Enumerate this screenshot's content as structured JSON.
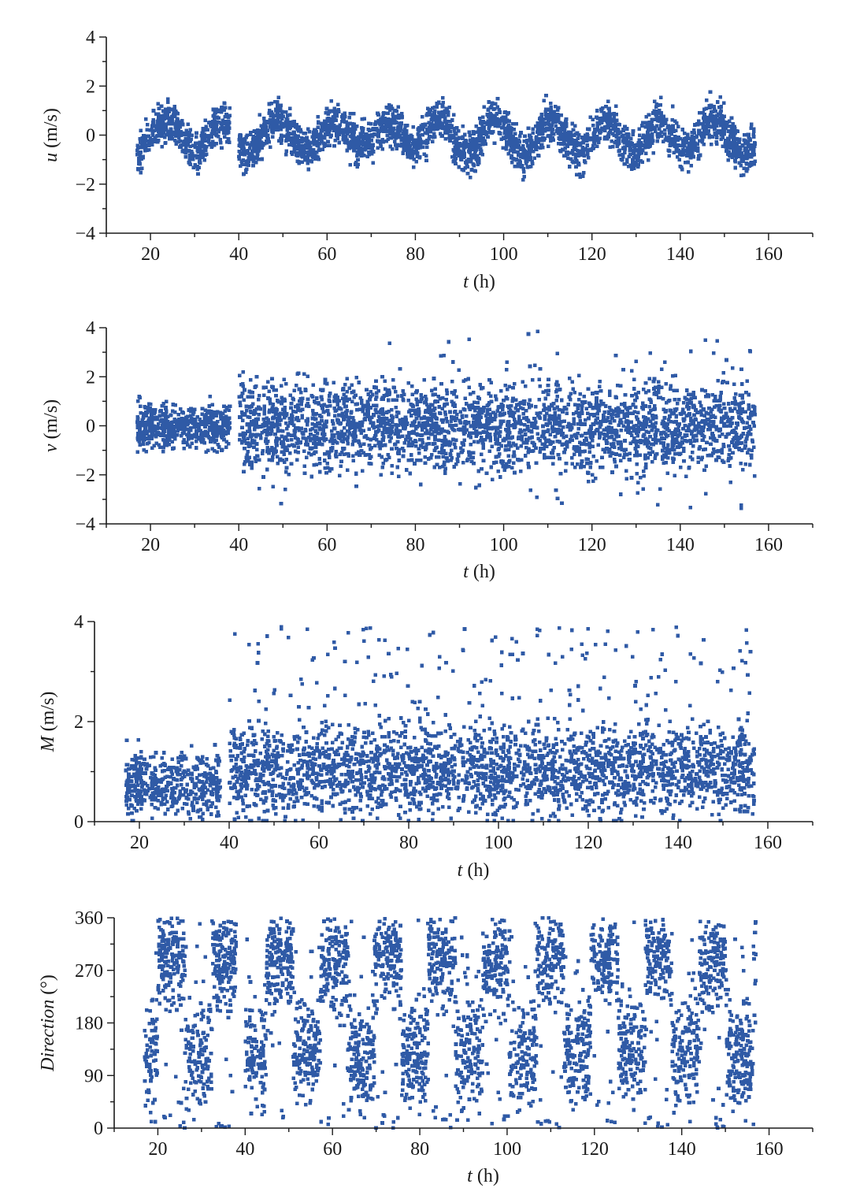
{
  "figure": {
    "point_color": "#2f5aa6"
  },
  "chart_data": [
    {
      "type": "scatter",
      "ylabel_var": "u",
      "ylabel_unit": " (m/s)",
      "xlabel_var": "t",
      "xlabel_unit": " (h)",
      "xlim": [
        10,
        170
      ],
      "ylim": [
        -4,
        4
      ],
      "xticks": [
        20,
        40,
        60,
        80,
        100,
        120,
        140,
        160
      ],
      "yticks": [
        -4,
        -2,
        0,
        2,
        4
      ],
      "ytick_labels": [
        "−4",
        "−2",
        "0",
        "2",
        "4"
      ],
      "x_range": [
        17,
        157
      ],
      "gap": [
        38,
        40
      ],
      "pattern": "semidiurnal oscillation, amplitude ~0.9 m/s, period ~12.4 h, scatter ±0.55",
      "series": [
        {
          "x": [
            17,
            19,
            21,
            23,
            25,
            27,
            29,
            31,
            33,
            35,
            37,
            41,
            44,
            47,
            50,
            53,
            56,
            59,
            62,
            65,
            68,
            71,
            74,
            77,
            80,
            83,
            86,
            89,
            92,
            95,
            98,
            101,
            104,
            107,
            110,
            113,
            116,
            119,
            122,
            125,
            128,
            131,
            134,
            137,
            140,
            143,
            146,
            149,
            152,
            155
          ],
          "y": [
            -0.6,
            -0.3,
            0.0,
            0.3,
            0.5,
            0.3,
            -0.2,
            -0.6,
            -0.5,
            0.0,
            0.5,
            -0.4,
            -0.6,
            0.1,
            0.6,
            0.2,
            -0.6,
            -0.7,
            0.4,
            0.6,
            -0.2,
            -0.6,
            0.4,
            0.5,
            -0.2,
            0.0,
            0.6,
            -0.1,
            -0.8,
            -0.3,
            0.6,
            0.4,
            -0.6,
            -0.8,
            0.2,
            0.5,
            -0.4,
            -0.9,
            0.2,
            0.6,
            -0.3,
            -0.9,
            0.1,
            0.5,
            -0.3,
            -0.7,
            0.3,
            0.6,
            -0.2,
            -0.8
          ]
        }
      ]
    },
    {
      "type": "scatter",
      "ylabel_var": "v",
      "ylabel_unit": " (m/s)",
      "xlabel_var": "t",
      "xlabel_unit": " (h)",
      "xlim": [
        10,
        170
      ],
      "ylim": [
        -4,
        4
      ],
      "xticks": [
        20,
        40,
        60,
        80,
        100,
        120,
        140,
        160
      ],
      "yticks": [
        -4,
        -2,
        0,
        2,
        4
      ],
      "ytick_labels": [
        "−4",
        "−2",
        "0",
        "2",
        "4"
      ],
      "x_range": [
        17,
        157
      ],
      "gap": [
        38,
        40
      ],
      "pattern": "dense band 17-38 h at 0±0.7 m/s, broader scatter 40-157 h at 0±1.2 m/s"
    },
    {
      "type": "scatter",
      "ylabel_var": "M",
      "ylabel_unit": " (m/s)",
      "xlabel_var": "t",
      "xlabel_unit": " (h)",
      "xlim": [
        10,
        170
      ],
      "ylim": [
        0,
        4
      ],
      "xticks": [
        20,
        40,
        60,
        80,
        100,
        120,
        140,
        160
      ],
      "yticks": [
        0,
        2,
        4
      ],
      "ytick_labels": [
        "0",
        "2",
        "4"
      ],
      "x_range": [
        17,
        157
      ],
      "gap": [
        38,
        40
      ],
      "pattern": "magnitude ~0.8 m/s for 17-38 h, ~1.0-1.2 m/s with spread to ~3.9 m/s for 40-157 h"
    },
    {
      "type": "scatter",
      "ylabel_var": "Direction",
      "ylabel_unit": " (°)",
      "xlabel_var": "t",
      "xlabel_unit": " (h)",
      "xlim": [
        10,
        170
      ],
      "ylim": [
        0,
        360
      ],
      "xticks": [
        20,
        40,
        60,
        80,
        100,
        120,
        140,
        160
      ],
      "yticks": [
        0,
        90,
        180,
        270,
        360
      ],
      "ytick_labels": [
        "0",
        "90",
        "180",
        "270",
        "360"
      ],
      "x_range": [
        17,
        157
      ],
      "gap": [
        38,
        40
      ],
      "pattern": "alternating clusters near 290° and 130° with ~12.4 h period"
    }
  ]
}
